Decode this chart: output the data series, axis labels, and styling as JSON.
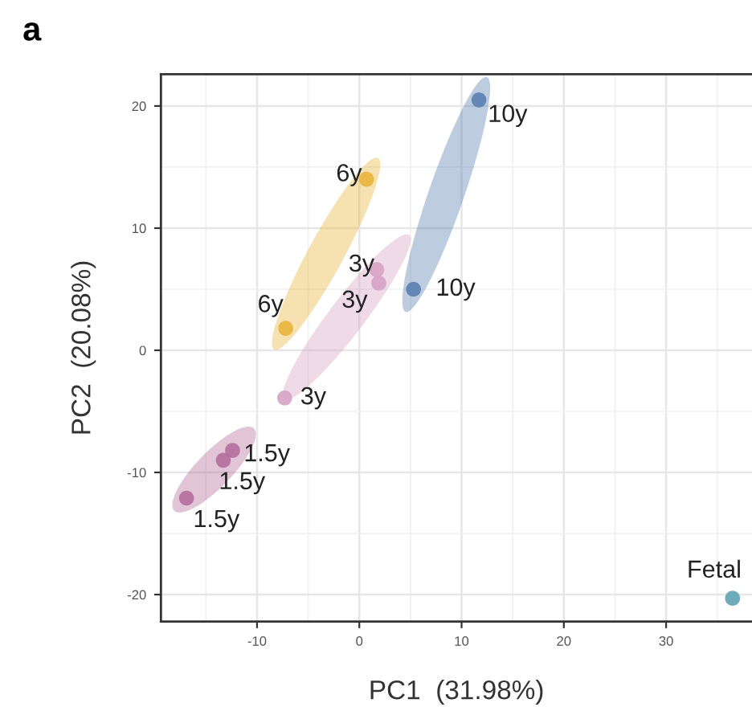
{
  "chart_data": {
    "type": "scatter",
    "title": "a",
    "xlabel": "PC1  (31.98%)",
    "ylabel": "PC2  (20.08%)",
    "series": [
      {
        "color": "#5b7fb0",
        "x": [
          11.7,
          5.3
        ],
        "values": [
          20.5,
          5.0
        ]
      },
      {
        "color": "#e8b43c",
        "x": [
          0.7,
          -7.2
        ],
        "values": [
          14.0,
          1.8
        ]
      },
      {
        "color": "#d6a2c4",
        "x": [
          1.7,
          1.9,
          -7.3
        ],
        "values": [
          6.6,
          5.5,
          -3.9
        ]
      },
      {
        "color": "#b56d9c",
        "x": [
          -12.4,
          -13.3,
          -16.9
        ],
        "values": [
          -8.2,
          -9.0,
          -12.1
        ]
      },
      {
        "color": "#5fa3b3",
        "x": [
          36.5
        ],
        "values": [
          -20.3
        ]
      }
    ],
    "annotations": [
      {
        "text": "10y",
        "x": 11.7,
        "y": 20.5
      },
      {
        "text": "10y",
        "x": 5.3,
        "y": 5.0
      },
      {
        "text": "6y",
        "x": 0.7,
        "y": 14.0
      },
      {
        "text": "6y",
        "x": -7.2,
        "y": 1.8
      },
      {
        "text": "3y",
        "x": 1.7,
        "y": 6.6
      },
      {
        "text": "3y",
        "x": 1.9,
        "y": 5.5
      },
      {
        "text": "3y",
        "x": -7.3,
        "y": -3.9
      },
      {
        "text": "1.5y",
        "x": -12.4,
        "y": -8.2
      },
      {
        "text": "1.5y",
        "x": -13.3,
        "y": -9.0
      },
      {
        "text": "1.5y",
        "x": -16.9,
        "y": -12.1
      },
      {
        "text": "Fetal",
        "x": 36.5,
        "y": -20.3
      }
    ],
    "xlim": [
      -19.4,
      38.4
    ],
    "ylim": [
      -22.2,
      22.6
    ],
    "xticks": [
      -10,
      0,
      10,
      20,
      30
    ],
    "yticks": [
      -20,
      -10,
      0,
      10,
      20
    ],
    "grid": true,
    "marker": "circle"
  }
}
